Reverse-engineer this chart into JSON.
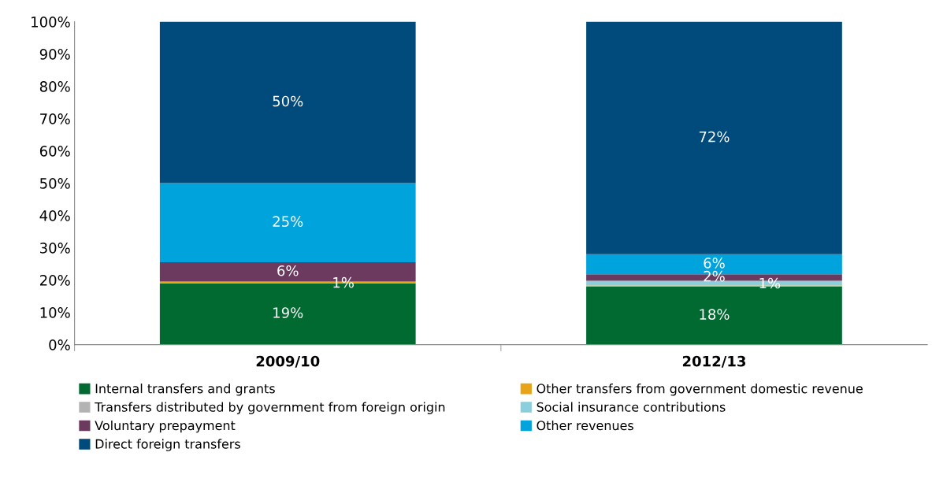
{
  "chart_data": {
    "type": "bar",
    "stacked": true,
    "categories": [
      "2009/10",
      "2012/13"
    ],
    "series": [
      {
        "name": "Internal transfers and grants",
        "color": "#006a30",
        "values": [
          19,
          18
        ],
        "value_labels": [
          "19%",
          "18%"
        ]
      },
      {
        "name": "Other transfers from government domestic revenue",
        "color": "#e8a317",
        "values": [
          0.5,
          0.3
        ],
        "value_labels": [
          "1%",
          null
        ]
      },
      {
        "name": "Transfers distributed by government from foreign origin",
        "color": "#b3b3b3",
        "values": [
          0,
          0
        ],
        "value_labels": [
          null,
          null
        ]
      },
      {
        "name": "Social insurance contributions",
        "color": "#8ccfdc",
        "values": [
          0,
          1.5
        ],
        "value_labels": [
          null,
          "1%"
        ]
      },
      {
        "name": "Voluntary prepayment",
        "color": "#6b3a5e",
        "values": [
          6,
          2
        ],
        "value_labels": [
          "6%",
          "2%"
        ]
      },
      {
        "name": "Other revenues",
        "color": "#00a3dc",
        "values": [
          24.5,
          6.2
        ],
        "value_labels": [
          "25%",
          "6%"
        ]
      },
      {
        "name": "Direct foreign transfers",
        "color": "#004a7c",
        "values": [
          50,
          72
        ],
        "value_labels": [
          "50%",
          "72%"
        ]
      }
    ],
    "ylim": [
      0,
      100
    ],
    "yticks": [
      {
        "value": 0,
        "label": "0%"
      },
      {
        "value": 10,
        "label": "10%"
      },
      {
        "value": 20,
        "label": "20%"
      },
      {
        "value": 30,
        "label": "30%"
      },
      {
        "value": 40,
        "label": "40%"
      },
      {
        "value": 50,
        "label": "50%"
      },
      {
        "value": 60,
        "label": "60%"
      },
      {
        "value": 70,
        "label": "70%"
      },
      {
        "value": 80,
        "label": "80%"
      },
      {
        "value": 90,
        "label": "90%"
      },
      {
        "value": 100,
        "label": "100%"
      }
    ],
    "grid": false,
    "legend": "bottom"
  }
}
